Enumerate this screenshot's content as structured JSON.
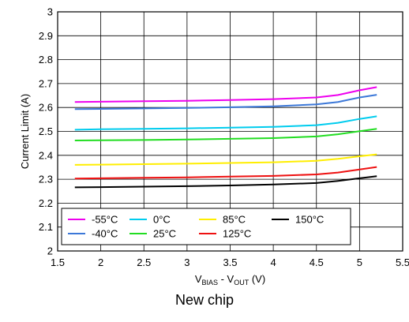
{
  "caption": "New chip",
  "chart_data": {
    "type": "line",
    "xlabel_parts": [
      [
        "V",
        ""
      ],
      [
        "BIAS",
        "sub"
      ],
      [
        " - V",
        ""
      ],
      [
        "OUT",
        "sub"
      ],
      [
        " (V)",
        ""
      ]
    ],
    "ylabel": "Current Limit (A)",
    "xlim": [
      1.5,
      5.5
    ],
    "ylim": [
      2,
      3
    ],
    "xticks": [
      "1.5",
      "2",
      "2.5",
      "3",
      "3.5",
      "4",
      "4.5",
      "5",
      "5.5"
    ],
    "yticks": [
      "2",
      "2.1",
      "2.2",
      "2.3",
      "2.4",
      "2.5",
      "2.6",
      "2.7",
      "2.8",
      "2.9",
      "3"
    ],
    "grid": true,
    "legend_position": "bottom-left",
    "legend_rows": [
      [
        "-55°C",
        "0°C",
        "85°C",
        "150°C"
      ],
      [
        "-40°C",
        "25°C",
        "125°C"
      ]
    ],
    "x": [
      1.7,
      2.0,
      2.5,
      3.0,
      3.5,
      4.0,
      4.5,
      4.75,
      5.0,
      5.2
    ],
    "series": [
      {
        "name": "-55°C",
        "color": "#ee00ee",
        "values": [
          2.623,
          2.624,
          2.626,
          2.628,
          2.631,
          2.635,
          2.642,
          2.652,
          2.672,
          2.685
        ]
      },
      {
        "name": "-40°C",
        "color": "#3c78d8",
        "values": [
          2.593,
          2.594,
          2.596,
          2.598,
          2.601,
          2.605,
          2.613,
          2.623,
          2.642,
          2.653
        ]
      },
      {
        "name": "0°C",
        "color": "#00ccee",
        "values": [
          2.507,
          2.509,
          2.511,
          2.513,
          2.516,
          2.519,
          2.526,
          2.536,
          2.552,
          2.563
        ]
      },
      {
        "name": "25°C",
        "color": "#22dd22",
        "values": [
          2.462,
          2.463,
          2.464,
          2.466,
          2.469,
          2.472,
          2.479,
          2.488,
          2.501,
          2.511
        ]
      },
      {
        "name": "85°C",
        "color": "#ffee00",
        "values": [
          2.36,
          2.361,
          2.363,
          2.365,
          2.368,
          2.371,
          2.377,
          2.385,
          2.396,
          2.404
        ]
      },
      {
        "name": "125°C",
        "color": "#ee1111",
        "values": [
          2.303,
          2.304,
          2.306,
          2.308,
          2.311,
          2.314,
          2.32,
          2.328,
          2.341,
          2.351
        ]
      },
      {
        "name": "150°C",
        "color": "#000000",
        "values": [
          2.266,
          2.267,
          2.269,
          2.271,
          2.274,
          2.278,
          2.284,
          2.293,
          2.304,
          2.313
        ]
      }
    ]
  }
}
